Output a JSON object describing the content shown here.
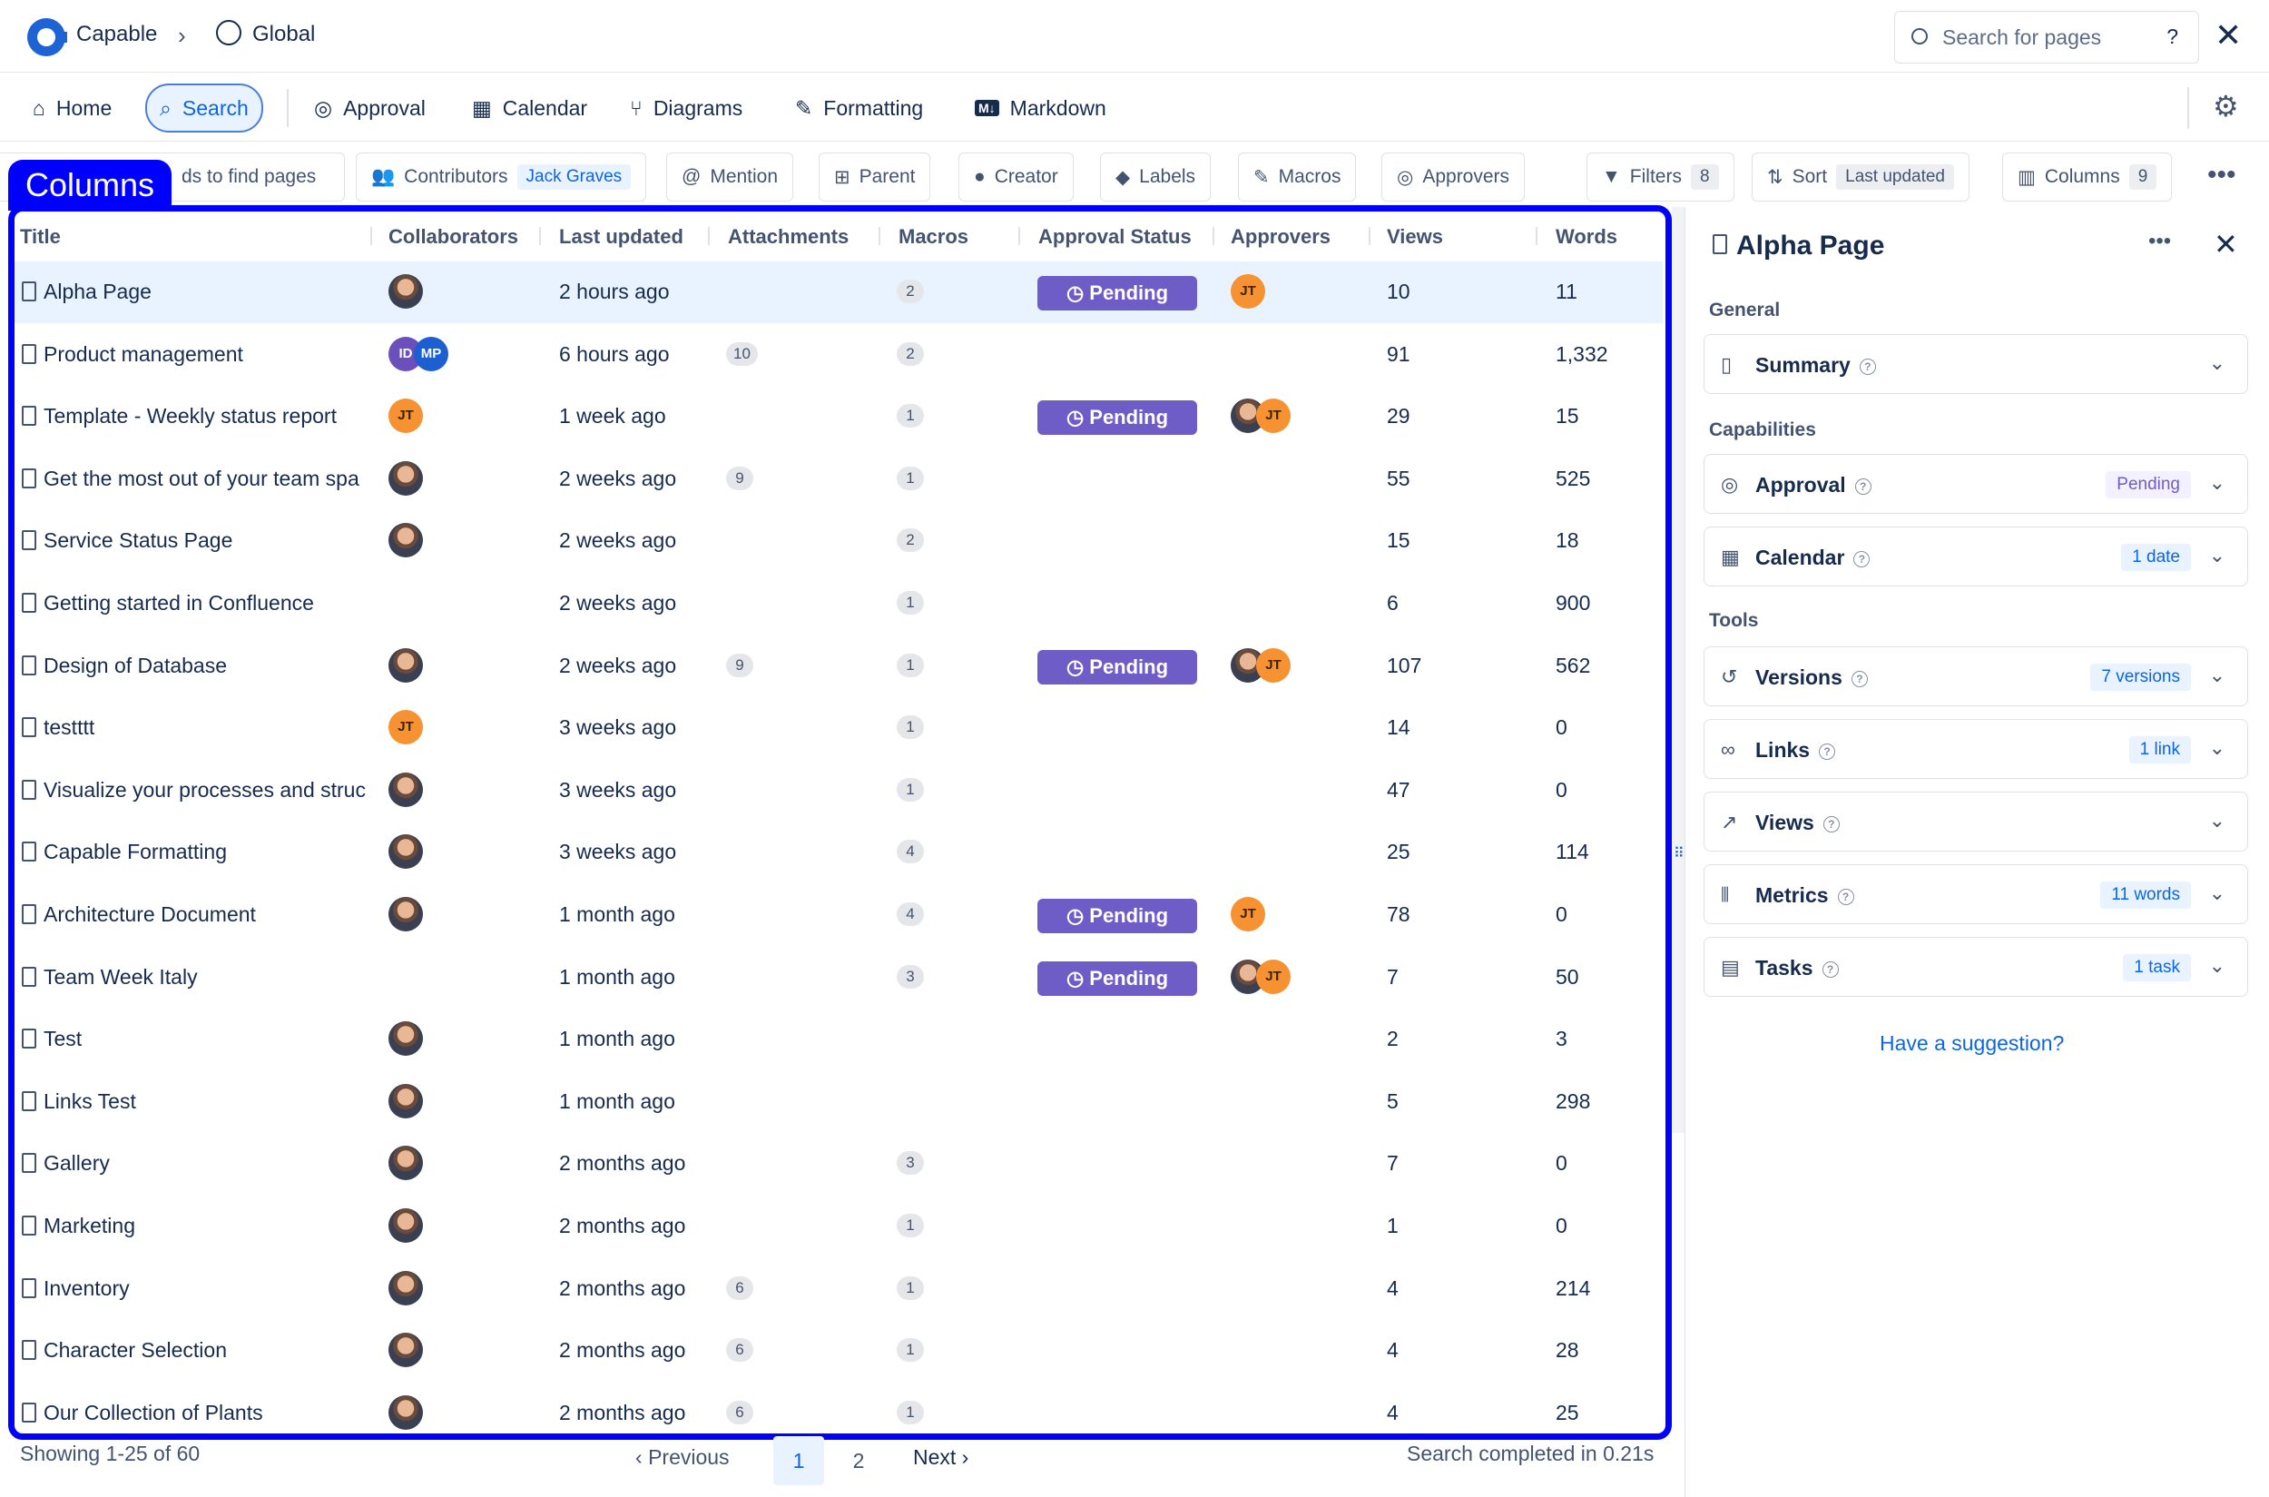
{
  "topbar": {
    "app": "Capable",
    "space": "Global",
    "search_placeholder": "Search for pages",
    "help": "?"
  },
  "nav": [
    {
      "label": "Home"
    },
    {
      "label": "Search"
    },
    {
      "label": "Approval"
    },
    {
      "label": "Calendar"
    },
    {
      "label": "Diagrams"
    },
    {
      "label": "Formatting"
    },
    {
      "label": "Markdown"
    }
  ],
  "filters": {
    "search_tail": "ds to find pages",
    "contributors": "Contributors",
    "contributor_value": "Jack Graves",
    "mention": "Mention",
    "parent": "Parent",
    "creator": "Creator",
    "labels": "Labels",
    "macros": "Macros",
    "approvers": "Approvers",
    "filters": "Filters",
    "filters_count": "8",
    "sort": "Sort",
    "sort_value": "Last updated",
    "columns": "Columns",
    "columns_count": "9"
  },
  "overlay": {
    "label": "Columns"
  },
  "table": {
    "headers": [
      "Title",
      "Collaborators",
      "Last updated",
      "Attachments",
      "Macros",
      "Approval Status",
      "Approvers",
      "Views",
      "Words"
    ],
    "rows": [
      {
        "title": "Alpha Page",
        "updated": "2 hours ago",
        "att": "",
        "mac": "2",
        "status": "Pending",
        "views": "10",
        "words": "11"
      },
      {
        "title": "Product management",
        "updated": "6 hours ago",
        "att": "10",
        "mac": "2",
        "status": "",
        "views": "91",
        "words": "1,332"
      },
      {
        "title": "Template - Weekly status report",
        "updated": "1 week ago",
        "att": "",
        "mac": "1",
        "status": "Pending",
        "views": "29",
        "words": "15"
      },
      {
        "title": "Get the most out of your team spa",
        "updated": "2 weeks ago",
        "att": "9",
        "mac": "1",
        "status": "",
        "views": "55",
        "words": "525"
      },
      {
        "title": "Service Status Page",
        "updated": "2 weeks ago",
        "att": "",
        "mac": "2",
        "status": "",
        "views": "15",
        "words": "18"
      },
      {
        "title": "Getting started in Confluence",
        "updated": "2 weeks ago",
        "att": "",
        "mac": "1",
        "status": "",
        "views": "6",
        "words": "900"
      },
      {
        "title": "Design of Database",
        "updated": "2 weeks ago",
        "att": "9",
        "mac": "1",
        "status": "Pending",
        "views": "107",
        "words": "562"
      },
      {
        "title": "testttt",
        "updated": "3 weeks ago",
        "att": "",
        "mac": "1",
        "status": "",
        "views": "14",
        "words": "0"
      },
      {
        "title": "Visualize your processes and struc",
        "updated": "3 weeks ago",
        "att": "",
        "mac": "1",
        "status": "",
        "views": "47",
        "words": "0"
      },
      {
        "title": "Capable Formatting",
        "updated": "3 weeks ago",
        "att": "",
        "mac": "4",
        "status": "",
        "views": "25",
        "words": "114"
      },
      {
        "title": "Architecture Document",
        "updated": "1 month ago",
        "att": "",
        "mac": "4",
        "status": "Pending",
        "views": "78",
        "words": "0"
      },
      {
        "title": "Team Week Italy",
        "updated": "1 month ago",
        "att": "",
        "mac": "3",
        "status": "Pending",
        "views": "7",
        "words": "50"
      },
      {
        "title": "Test",
        "updated": "1 month ago",
        "att": "",
        "mac": "",
        "status": "",
        "views": "2",
        "words": "3"
      },
      {
        "title": "Links Test",
        "updated": "1 month ago",
        "att": "",
        "mac": "",
        "status": "",
        "views": "5",
        "words": "298"
      },
      {
        "title": "Gallery",
        "updated": "2 months ago",
        "att": "",
        "mac": "3",
        "status": "",
        "views": "7",
        "words": "0"
      },
      {
        "title": "Marketing",
        "updated": "2 months ago",
        "att": "",
        "mac": "1",
        "status": "",
        "views": "1",
        "words": "0"
      },
      {
        "title": "Inventory",
        "updated": "2 months ago",
        "att": "6",
        "mac": "1",
        "status": "",
        "views": "4",
        "words": "214"
      },
      {
        "title": "Character Selection",
        "updated": "2 months ago",
        "att": "6",
        "mac": "1",
        "status": "",
        "views": "4",
        "words": "28"
      },
      {
        "title": "Our Collection of Plants",
        "updated": "2 months ago",
        "att": "6",
        "mac": "1",
        "status": "",
        "views": "4",
        "words": "25"
      }
    ]
  },
  "avatars": {
    "jt": "JT",
    "id": "ID",
    "mp": "MP"
  },
  "footer": {
    "showing": "Showing 1-25 of 60",
    "previous": "Previous",
    "page1": "1",
    "page2": "2",
    "next": "Next",
    "completed": "Search completed in 0.21s"
  },
  "panel": {
    "title": "Alpha Page",
    "general": "General",
    "capabilities": "Capabilities",
    "tools": "Tools",
    "suggestion": "Have a suggestion?",
    "cards": [
      {
        "label": "Summary",
        "badge": ""
      },
      {
        "label": "Approval",
        "badge": "Pending"
      },
      {
        "label": "Calendar",
        "badge": "1 date"
      },
      {
        "label": "Versions",
        "badge": "7 versions"
      },
      {
        "label": "Links",
        "badge": "1 link"
      },
      {
        "label": "Views",
        "badge": ""
      },
      {
        "label": "Metrics",
        "badge": "11 words"
      },
      {
        "label": "Tasks",
        "badge": "1 task"
      }
    ]
  }
}
